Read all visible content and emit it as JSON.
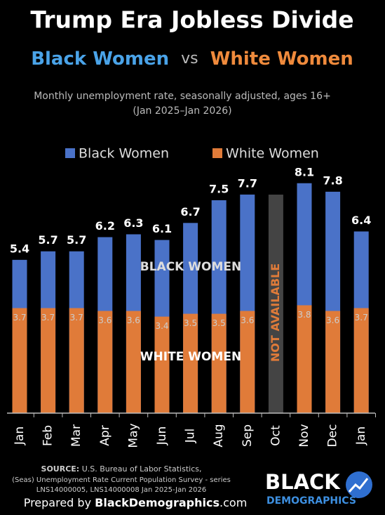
{
  "chart_data": {
    "type": "bar",
    "title": "Trump Era Jobless Divide",
    "subtitle": {
      "left": "Black Women",
      "middle": "vs",
      "right": "White Women"
    },
    "description": [
      "Monthly unemployment rate, seasonally adjusted, ages 16+",
      "(Jan 2025–Jan 2026)"
    ],
    "categories": [
      "Jan",
      "Feb",
      "Mar",
      "Apr",
      "May",
      "Jun",
      "Jul",
      "Aug",
      "Sep",
      "Oct",
      "Nov",
      "Dec",
      "Jan"
    ],
    "series": [
      {
        "name": "Black Women",
        "color": "#4a72c8",
        "values": [
          5.4,
          5.7,
          5.7,
          6.2,
          6.3,
          6.1,
          6.7,
          7.5,
          7.7,
          null,
          8.1,
          7.8,
          6.4
        ]
      },
      {
        "name": "White Women",
        "color": "#e07b39",
        "values": [
          3.7,
          3.7,
          3.7,
          3.6,
          3.6,
          3.4,
          3.5,
          3.5,
          3.6,
          null,
          3.8,
          3.6,
          3.7
        ]
      }
    ],
    "annotations": {
      "black": "BLACK WOMEN",
      "white": "WHITE WOMEN",
      "missing": "NOT AVAILABLE"
    },
    "source": {
      "label": "SOURCE:",
      "lines": [
        "U.S. Bureau of Labor Statistics,",
        "(Seas) Unemployment Rate Current Population Survey - series",
        "LNS14000005, LNS14000008 Jan 2025-Jan 2026"
      ]
    },
    "credit": {
      "prefix": "Prepared by",
      "brand": "BlackDemographics",
      "suffix": ".com"
    },
    "logo": {
      "top": "BLACK",
      "bottom": "DEMOGRAPHICS"
    }
  }
}
